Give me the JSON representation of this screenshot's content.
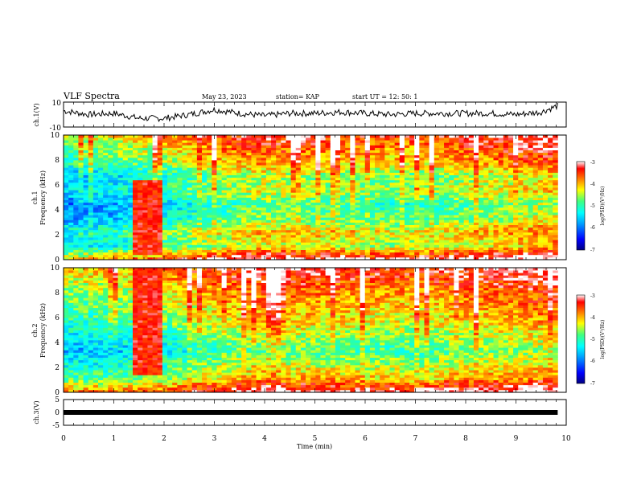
{
  "header": {
    "title": "VLF Spectra",
    "date": "May 23, 2023",
    "station": "station= KAP",
    "start": "start  UT  =   12: 50: 1"
  },
  "colors": {
    "trace": "#000000",
    "colormap": [
      "#000080",
      "#0000ff",
      "#00a0ff",
      "#00ffff",
      "#40ff80",
      "#ffff00",
      "#ff8000",
      "#ff0000",
      "#ffffff"
    ]
  },
  "chart_data": [
    {
      "type": "line",
      "ylabel": "ch.1(V)",
      "ylim": [
        -10,
        10
      ],
      "yticks": [
        "10",
        "-10"
      ],
      "x": [
        0,
        0.5,
        1,
        1.5,
        2,
        2.5,
        3,
        3.5,
        4,
        4.5,
        5,
        5.5,
        6,
        6.5,
        7,
        7.5,
        8,
        8.5,
        9,
        9.5,
        9.83
      ],
      "values": [
        3,
        0,
        1,
        -3,
        -3,
        0,
        4,
        1,
        -1,
        1,
        1,
        2,
        1,
        0,
        1,
        1,
        1,
        1,
        0,
        2,
        7
      ]
    },
    {
      "type": "heatmap",
      "ylabel_lines": [
        "ch.1",
        "Frequency  (kHz)"
      ],
      "ylim": [
        0,
        10
      ],
      "yticks": [
        "0",
        "2",
        "4",
        "6",
        "8",
        "10"
      ],
      "xlim": [
        0,
        9.83
      ],
      "colorbar": {
        "label": "log(PSD)(V²/Hz)",
        "range": [
          -7,
          -3
        ],
        "ticks": [
          "-3",
          "-4",
          "-5",
          "-6",
          "-7"
        ]
      },
      "intensity": [
        -5.5,
        -5.3,
        -5.0,
        -4.6,
        -4.3,
        -4.4,
        -4.5,
        -4.6,
        -4.4,
        -4.2,
        -4.0
      ],
      "freq_intensity": [
        -3.5,
        -5.0,
        -4.7,
        -5.3,
        -5.5,
        -5.0,
        -5.2,
        -4.6,
        -4.3,
        -3.9
      ],
      "emission_band": {
        "x": [
          1.35,
          2.0
        ],
        "freq_khz": [
          0.5,
          6.4
        ]
      }
    },
    {
      "type": "heatmap",
      "ylabel_lines": [
        "ch.2",
        "Frequency  (kHz)"
      ],
      "ylim": [
        0,
        10
      ],
      "yticks": [
        "0",
        "2",
        "4",
        "6",
        "8",
        "10"
      ],
      "xlim": [
        0,
        9.83
      ],
      "colorbar": {
        "label": "log(PSD)(V²/Hz)",
        "range": [
          -7,
          -3
        ],
        "ticks": [
          "-3",
          "-4",
          "-5",
          "-6",
          "-7"
        ]
      },
      "intensity": [
        -5.3,
        -5.2,
        -5.0,
        -4.6,
        -4.3,
        -4.4,
        -4.5,
        -4.6,
        -4.4,
        -4.3,
        -4.1
      ],
      "freq_intensity": [
        -3.5,
        -4.6,
        -5.0,
        -5.4,
        -5.1,
        -4.8,
        -4.6,
        -4.4,
        -4.1,
        -3.8
      ],
      "emission_band": {
        "x": [
          1.35,
          2.0
        ],
        "freq_khz": [
          1.4,
          10
        ]
      }
    },
    {
      "type": "line",
      "ylabel": "ch.3(V)",
      "ylim": [
        -5,
        5
      ],
      "yticks": [
        "5",
        "0",
        "-5"
      ],
      "x": [
        0,
        9.83
      ],
      "values": [
        0,
        0
      ]
    }
  ],
  "xaxis": {
    "label": "Time  (min)",
    "ticks": [
      "0",
      "1",
      "2",
      "3",
      "4",
      "5",
      "6",
      "7",
      "8",
      "9",
      "10"
    ],
    "range": [
      0,
      10
    ]
  }
}
